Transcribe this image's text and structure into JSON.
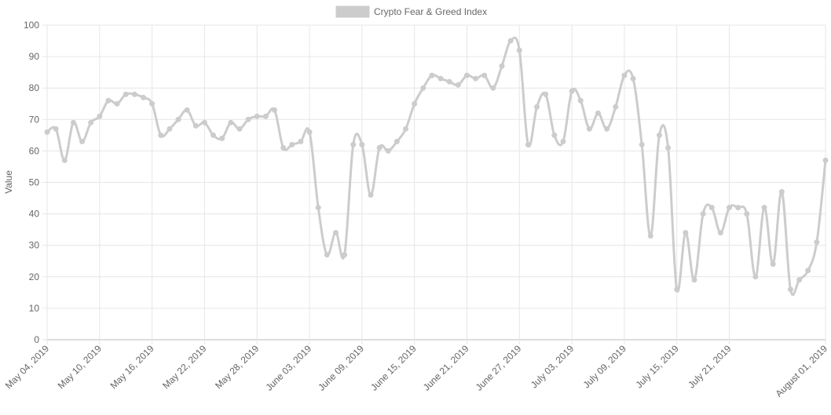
{
  "chart_data": {
    "type": "line",
    "title": "",
    "xlabel": "",
    "ylabel": "Value",
    "ylim": [
      0,
      100
    ],
    "y_ticks": [
      0,
      10,
      20,
      30,
      40,
      50,
      60,
      70,
      80,
      90,
      100
    ],
    "grid": true,
    "legend_position": "top-center",
    "x_start": "2019-05-04",
    "x_end": "2019-08-01",
    "x_tick_labels": [
      {
        "date": "2019-05-04",
        "label": "May 04, 2019"
      },
      {
        "date": "2019-05-10",
        "label": "May 10, 2019"
      },
      {
        "date": "2019-05-16",
        "label": "May 16, 2019"
      },
      {
        "date": "2019-05-22",
        "label": "May 22, 2019"
      },
      {
        "date": "2019-05-28",
        "label": "May 28, 2019"
      },
      {
        "date": "2019-06-03",
        "label": "June 03, 2019"
      },
      {
        "date": "2019-06-09",
        "label": "June 09, 2019"
      },
      {
        "date": "2019-06-15",
        "label": "June 15, 2019"
      },
      {
        "date": "2019-06-21",
        "label": "June 21, 2019"
      },
      {
        "date": "2019-06-27",
        "label": "June 27, 2019"
      },
      {
        "date": "2019-07-03",
        "label": "July 03, 2019"
      },
      {
        "date": "2019-07-09",
        "label": "July 09, 2019"
      },
      {
        "date": "2019-07-15",
        "label": "July 15, 2019"
      },
      {
        "date": "2019-07-21",
        "label": "July 21, 2019"
      },
      {
        "date": "2019-08-01",
        "label": "August 01, 2019"
      }
    ],
    "series": [
      {
        "name": "Crypto Fear & Greed Index",
        "color": "#cccccc",
        "x": [
          "2019-05-04",
          "2019-05-05",
          "2019-05-06",
          "2019-05-07",
          "2019-05-08",
          "2019-05-09",
          "2019-05-10",
          "2019-05-11",
          "2019-05-12",
          "2019-05-13",
          "2019-05-14",
          "2019-05-15",
          "2019-05-16",
          "2019-05-17",
          "2019-05-18",
          "2019-05-19",
          "2019-05-20",
          "2019-05-21",
          "2019-05-22",
          "2019-05-23",
          "2019-05-24",
          "2019-05-25",
          "2019-05-26",
          "2019-05-27",
          "2019-05-28",
          "2019-05-29",
          "2019-05-30",
          "2019-05-31",
          "2019-06-01",
          "2019-06-02",
          "2019-06-03",
          "2019-06-04",
          "2019-06-05",
          "2019-06-06",
          "2019-06-07",
          "2019-06-08",
          "2019-06-09",
          "2019-06-10",
          "2019-06-11",
          "2019-06-12",
          "2019-06-13",
          "2019-06-14",
          "2019-06-15",
          "2019-06-16",
          "2019-06-17",
          "2019-06-18",
          "2019-06-19",
          "2019-06-20",
          "2019-06-21",
          "2019-06-22",
          "2019-06-23",
          "2019-06-24",
          "2019-06-25",
          "2019-06-26",
          "2019-06-27",
          "2019-06-28",
          "2019-06-29",
          "2019-06-30",
          "2019-07-01",
          "2019-07-02",
          "2019-07-03",
          "2019-07-04",
          "2019-07-05",
          "2019-07-06",
          "2019-07-07",
          "2019-07-08",
          "2019-07-09",
          "2019-07-10",
          "2019-07-11",
          "2019-07-12",
          "2019-07-13",
          "2019-07-14",
          "2019-07-15",
          "2019-07-16",
          "2019-07-17",
          "2019-07-18",
          "2019-07-19",
          "2019-07-20",
          "2019-07-21",
          "2019-07-22",
          "2019-07-23",
          "2019-07-24",
          "2019-07-25",
          "2019-07-26",
          "2019-07-27",
          "2019-07-28",
          "2019-07-29",
          "2019-07-30",
          "2019-07-31",
          "2019-08-01"
        ],
        "values": [
          66,
          67,
          57,
          69,
          63,
          69,
          71,
          76,
          75,
          78,
          78,
          77,
          75,
          65,
          67,
          70,
          73,
          68,
          69,
          65,
          64,
          69,
          67,
          70,
          71,
          71,
          73,
          61,
          62,
          63,
          66,
          42,
          27,
          34,
          27,
          62,
          62,
          46,
          61,
          60,
          63,
          67,
          75,
          80,
          84,
          83,
          82,
          81,
          84,
          83,
          84,
          80,
          87,
          95,
          92,
          62,
          74,
          78,
          65,
          63,
          79,
          76,
          67,
          72,
          67,
          74,
          84,
          83,
          62,
          33,
          65,
          61,
          16,
          34,
          19,
          40,
          42,
          34,
          42,
          42,
          40,
          20,
          42,
          24,
          47,
          16,
          19,
          22,
          31,
          57
        ]
      }
    ]
  }
}
